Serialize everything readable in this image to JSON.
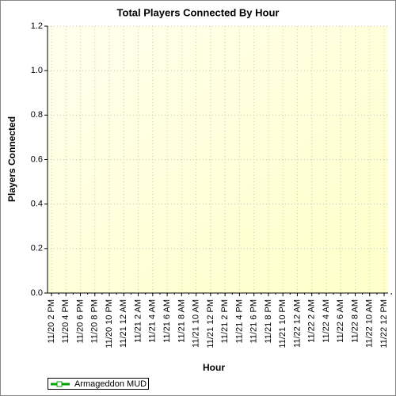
{
  "chart_data": {
    "type": "line",
    "title": "Total Players Connected By Hour",
    "x_label": "Hour",
    "y_label": "Players Connected",
    "categories": [
      "11/20 2 PM",
      "11/20 4 PM",
      "11/20 6 PM",
      "11/20 8 PM",
      "11/20 10 PM",
      "11/21 12 AM",
      "11/21 2 AM",
      "11/21 4 AM",
      "11/21 6 AM",
      "11/21 8 AM",
      "11/21 10 AM",
      "11/21 12 PM",
      "11/21 2 PM",
      "11/21 4 PM",
      "11/21 6 PM",
      "11/21 8 PM",
      "11/21 10 PM",
      "11/22 12 AM",
      "11/22 2 AM",
      "11/22 4 AM",
      "11/22 6 AM",
      "11/22 8 AM",
      "11/22 10 AM",
      "11/22 12 PM"
    ],
    "series": [
      {
        "name": "Armageddon MUD",
        "color": "#00a000",
        "values": [
          null,
          null,
          null,
          null,
          null,
          null,
          null,
          null,
          null,
          null,
          null,
          null,
          null,
          null,
          null,
          null,
          null,
          null,
          null,
          null,
          null,
          null,
          null,
          null
        ]
      }
    ],
    "ylim": [
      0,
      1.2
    ],
    "yticks": [
      {
        "value": 0,
        "label": "0.0"
      },
      0.2,
      0.4,
      0.6,
      0.8,
      {
        "value": 1,
        "label": "1.0"
      },
      1.2
    ],
    "grid": true
  }
}
